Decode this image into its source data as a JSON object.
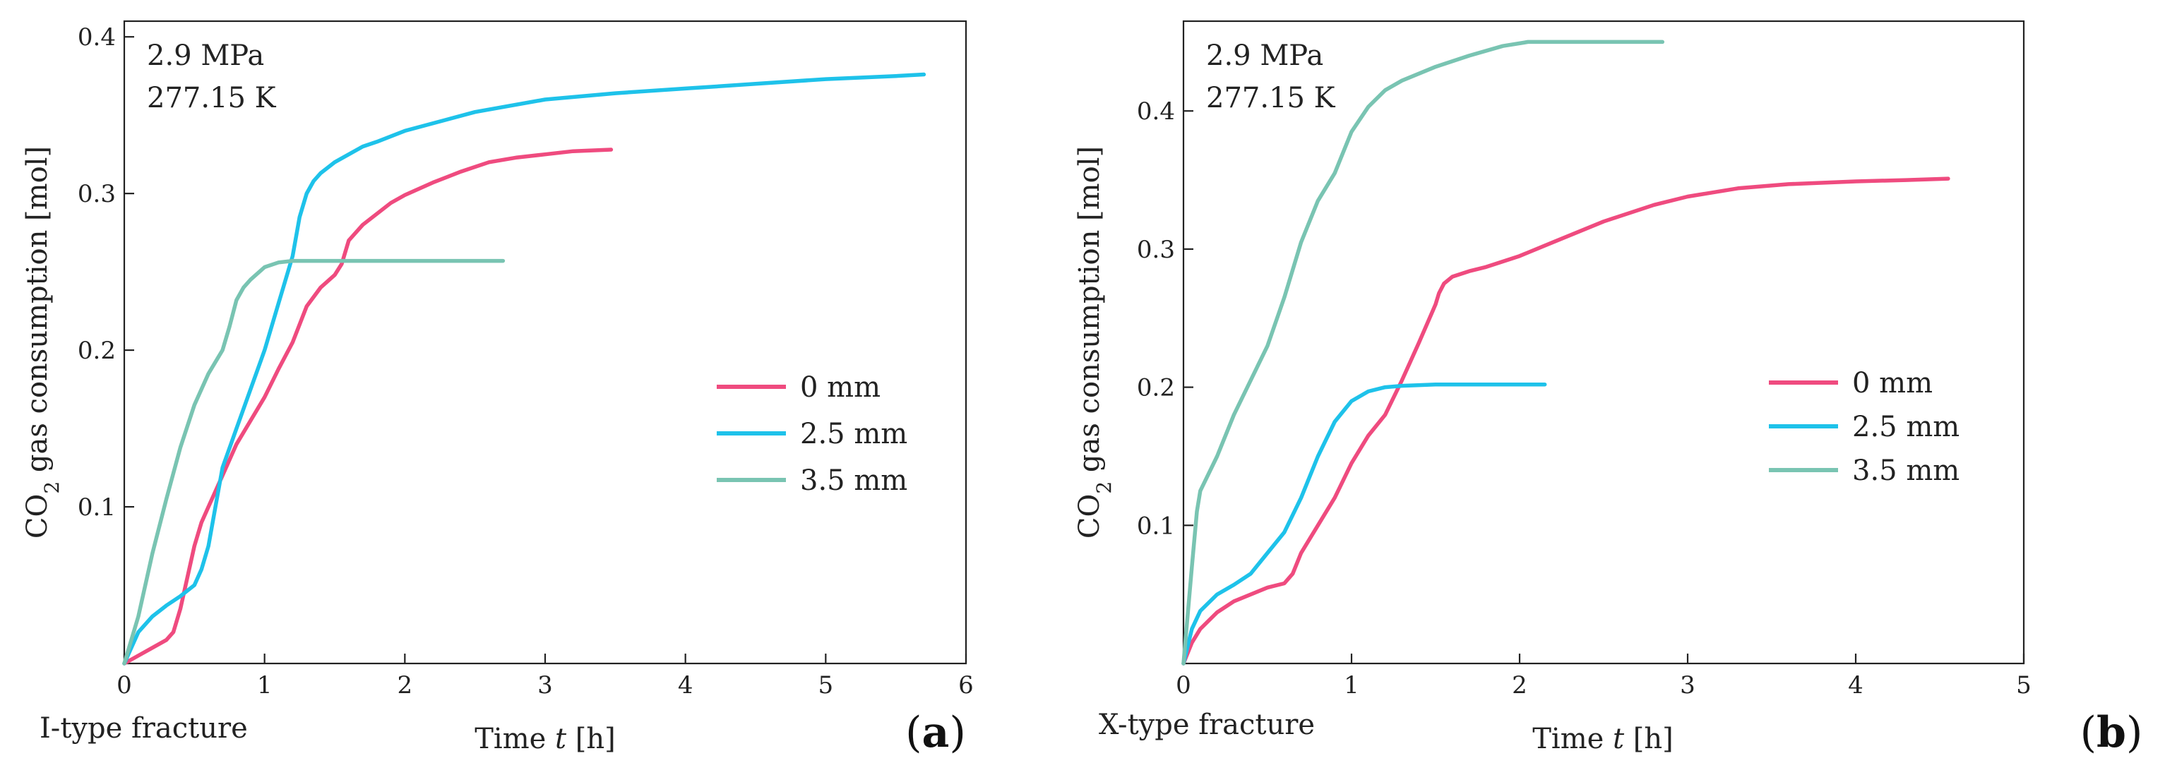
{
  "chart_data": [
    {
      "type": "line",
      "panel_label": "(a)",
      "panel_label_letter": "a",
      "fracture_label": "I-type fracture",
      "annotation": [
        "2.9 MPa",
        "277.15 K"
      ],
      "xlabel": "Time",
      "xlabel_var": "t",
      "xlabel_unit": "[h]",
      "ylabel": "CO2 gas consumption [mol]",
      "ylabel_main": "CO",
      "ylabel_sub": "2",
      "ylabel_rest": " gas consumption [mol]",
      "xlim": [
        0,
        6
      ],
      "ylim": [
        0,
        0.41
      ],
      "xticks": [
        0,
        1,
        2,
        3,
        4,
        5,
        6
      ],
      "xtick_labels": [
        "0",
        "1",
        "2",
        "3",
        "4",
        "5",
        "6"
      ],
      "yticks": [
        0.1,
        0.2,
        0.3,
        0.4
      ],
      "ytick_labels": [
        "0.1",
        "0.2",
        "0.3",
        "0.4"
      ],
      "legend": {
        "position": "center-right",
        "entries": [
          "0 mm",
          "2.5 mm",
          "3.5 mm"
        ]
      },
      "series": [
        {
          "name": "0 mm",
          "color": "#ef4b7f",
          "x": [
            0,
            0.1,
            0.2,
            0.3,
            0.35,
            0.4,
            0.45,
            0.5,
            0.55,
            0.6,
            0.7,
            0.8,
            0.9,
            1.0,
            1.1,
            1.2,
            1.3,
            1.4,
            1.5,
            1.55,
            1.6,
            1.7,
            1.8,
            1.9,
            2.0,
            2.2,
            2.4,
            2.6,
            2.8,
            3.0,
            3.2,
            3.47
          ],
          "y": [
            0,
            0.005,
            0.01,
            0.015,
            0.02,
            0.035,
            0.055,
            0.075,
            0.09,
            0.1,
            0.12,
            0.14,
            0.155,
            0.17,
            0.188,
            0.205,
            0.228,
            0.24,
            0.248,
            0.255,
            0.27,
            0.28,
            0.287,
            0.294,
            0.299,
            0.307,
            0.314,
            0.32,
            0.323,
            0.325,
            0.327,
            0.328
          ]
        },
        {
          "name": "2.5 mm",
          "color": "#1ec2ea",
          "x": [
            0,
            0.1,
            0.2,
            0.3,
            0.4,
            0.5,
            0.55,
            0.6,
            0.65,
            0.7,
            0.8,
            0.9,
            1.0,
            1.1,
            1.2,
            1.25,
            1.3,
            1.35,
            1.4,
            1.5,
            1.6,
            1.7,
            1.8,
            2.0,
            2.5,
            3.0,
            3.5,
            4.0,
            4.5,
            5.0,
            5.5,
            5.7
          ],
          "y": [
            0,
            0.02,
            0.03,
            0.037,
            0.043,
            0.05,
            0.06,
            0.075,
            0.1,
            0.125,
            0.15,
            0.175,
            0.2,
            0.23,
            0.26,
            0.285,
            0.3,
            0.308,
            0.313,
            0.32,
            0.325,
            0.33,
            0.333,
            0.34,
            0.352,
            0.36,
            0.364,
            0.367,
            0.37,
            0.373,
            0.375,
            0.376
          ]
        },
        {
          "name": "3.5 mm",
          "color": "#79c4b2",
          "x": [
            0,
            0.1,
            0.2,
            0.3,
            0.4,
            0.5,
            0.6,
            0.7,
            0.75,
            0.8,
            0.85,
            0.9,
            1.0,
            1.1,
            1.2,
            1.5,
            2.0,
            2.5,
            2.7
          ],
          "y": [
            0,
            0.03,
            0.07,
            0.105,
            0.138,
            0.165,
            0.185,
            0.2,
            0.215,
            0.232,
            0.24,
            0.245,
            0.253,
            0.256,
            0.257,
            0.257,
            0.257,
            0.257,
            0.257
          ]
        }
      ]
    },
    {
      "type": "line",
      "panel_label": "(b)",
      "panel_label_letter": "b",
      "fracture_label": "X-type fracture",
      "annotation": [
        "2.9 MPa",
        "277.15 K"
      ],
      "xlabel": "Time",
      "xlabel_var": "t",
      "xlabel_unit": "[h]",
      "ylabel": "CO2 gas consumption [mol]",
      "ylabel_main": "CO",
      "ylabel_sub": "2",
      "ylabel_rest": " gas consumption [mol]",
      "xlim": [
        0,
        5
      ],
      "ylim": [
        0,
        0.465
      ],
      "xticks": [
        0,
        1,
        2,
        3,
        4,
        5
      ],
      "xtick_labels": [
        "0",
        "1",
        "2",
        "3",
        "4",
        "5"
      ],
      "yticks": [
        0.1,
        0.2,
        0.3,
        0.4
      ],
      "ytick_labels": [
        "0.1",
        "0.2",
        "0.3",
        "0.4"
      ],
      "legend": {
        "position": "center-right",
        "entries": [
          "0 mm",
          "2.5 mm",
          "3.5 mm"
        ]
      },
      "series": [
        {
          "name": "0 mm",
          "color": "#ef4b7f",
          "x": [
            0,
            0.05,
            0.1,
            0.2,
            0.3,
            0.4,
            0.5,
            0.6,
            0.65,
            0.7,
            0.8,
            0.9,
            1.0,
            1.1,
            1.2,
            1.3,
            1.4,
            1.5,
            1.52,
            1.55,
            1.6,
            1.7,
            1.8,
            2.0,
            2.2,
            2.5,
            2.8,
            3.0,
            3.3,
            3.6,
            4.0,
            4.3,
            4.55
          ],
          "y": [
            0,
            0.015,
            0.025,
            0.037,
            0.045,
            0.05,
            0.055,
            0.058,
            0.065,
            0.08,
            0.1,
            0.12,
            0.145,
            0.165,
            0.18,
            0.205,
            0.232,
            0.26,
            0.268,
            0.275,
            0.28,
            0.284,
            0.287,
            0.295,
            0.305,
            0.32,
            0.332,
            0.338,
            0.344,
            0.347,
            0.349,
            0.35,
            0.351
          ]
        },
        {
          "name": "2.5 mm",
          "color": "#1ec2ea",
          "x": [
            0,
            0.05,
            0.1,
            0.2,
            0.3,
            0.4,
            0.5,
            0.6,
            0.7,
            0.8,
            0.9,
            1.0,
            1.1,
            1.2,
            1.3,
            1.5,
            1.8,
            2.0,
            2.15
          ],
          "y": [
            0,
            0.025,
            0.038,
            0.05,
            0.057,
            0.065,
            0.08,
            0.095,
            0.12,
            0.15,
            0.175,
            0.19,
            0.197,
            0.2,
            0.201,
            0.202,
            0.202,
            0.202,
            0.202
          ]
        },
        {
          "name": "3.5 mm",
          "color": "#79c4b2",
          "x": [
            0,
            0.05,
            0.08,
            0.1,
            0.2,
            0.3,
            0.4,
            0.5,
            0.6,
            0.7,
            0.8,
            0.9,
            1.0,
            1.1,
            1.2,
            1.3,
            1.5,
            1.7,
            1.9,
            2.05,
            2.3,
            2.6,
            2.85
          ],
          "y": [
            0,
            0.07,
            0.11,
            0.125,
            0.15,
            0.18,
            0.205,
            0.23,
            0.265,
            0.305,
            0.335,
            0.355,
            0.385,
            0.403,
            0.415,
            0.422,
            0.432,
            0.44,
            0.447,
            0.45,
            0.45,
            0.45,
            0.45
          ]
        }
      ]
    }
  ]
}
